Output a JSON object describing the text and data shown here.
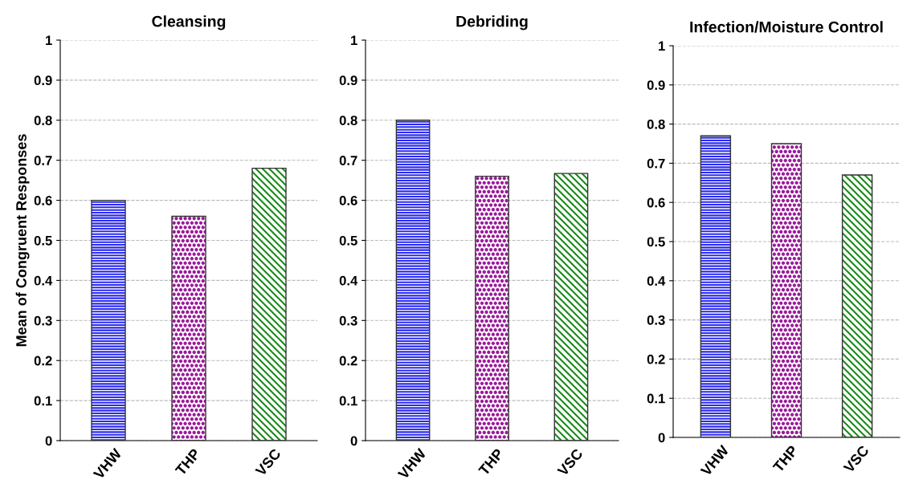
{
  "chart_data": [
    {
      "type": "bar",
      "title": "Cleansing",
      "ylabel": "Mean of Congruent Responses",
      "categories": [
        "VHW",
        "THP",
        "VSC"
      ],
      "values": [
        0.6,
        0.56,
        0.68
      ],
      "colors": [
        "#2a2af0",
        "#9a1a9a",
        "#1a8a1a"
      ],
      "ylim": [
        0,
        1
      ],
      "yticks": [
        0,
        0.1,
        0.2,
        0.3,
        0.4,
        0.5,
        0.6,
        0.7,
        0.8,
        0.9,
        1
      ],
      "grid": "y"
    },
    {
      "type": "bar",
      "title": "Debriding",
      "categories": [
        "VHW",
        "THP",
        "VSC"
      ],
      "values": [
        0.8,
        0.66,
        0.667
      ],
      "colors": [
        "#2a2af0",
        "#9a1a9a",
        "#1a8a1a"
      ],
      "ylim": [
        0,
        1
      ],
      "yticks": [
        0,
        0.1,
        0.2,
        0.3,
        0.4,
        0.5,
        0.6,
        0.7,
        0.8,
        0.9,
        1
      ],
      "grid": "y"
    },
    {
      "type": "bar",
      "title": "Infection/Moisture Control",
      "categories": [
        "VHW",
        "THP",
        "VSC"
      ],
      "values": [
        0.77,
        0.75,
        0.67
      ],
      "colors": [
        "#2a2af0",
        "#9a1a9a",
        "#1a8a1a"
      ],
      "ylim": [
        0,
        1
      ],
      "yticks": [
        0,
        0.1,
        0.2,
        0.3,
        0.4,
        0.5,
        0.6,
        0.7,
        0.8,
        0.9,
        1
      ],
      "grid": "y"
    }
  ]
}
